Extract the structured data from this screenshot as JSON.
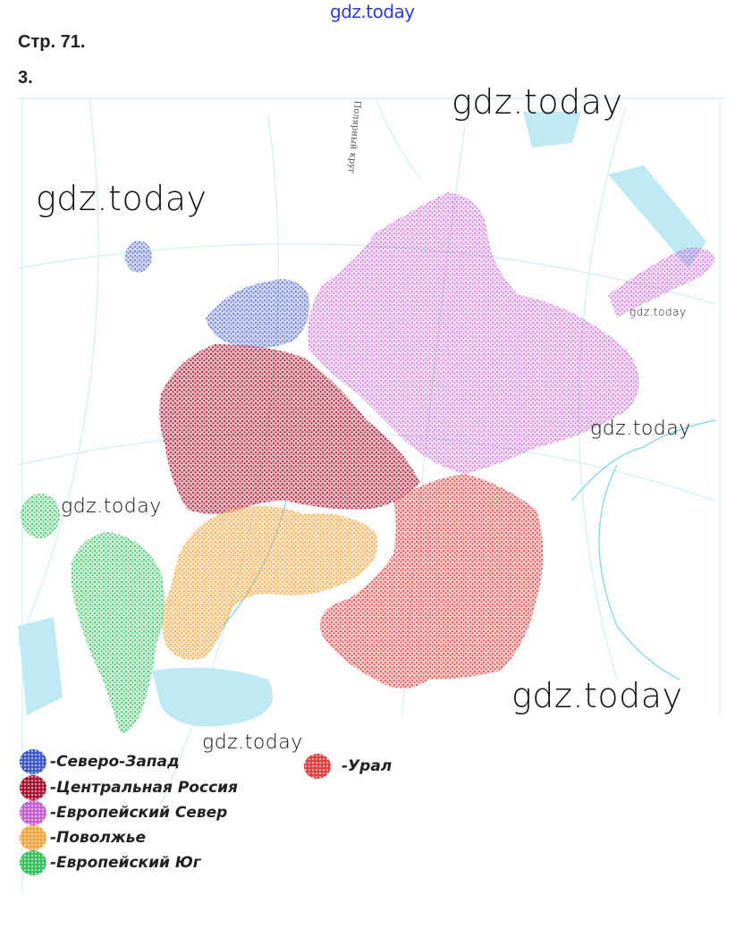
{
  "header": {
    "watermark_top": "gdz.today",
    "page_ref": "Стр. 71.",
    "task_number": "3."
  },
  "map": {
    "circle_label": "Полярный круг",
    "watermarks": [
      "gdz.today",
      "gdz.today",
      "gdz.today",
      "gdz.today",
      "gdz.today",
      "gdz.today",
      "gdz.today"
    ],
    "colors": {
      "north_west": "#3b55c9",
      "central_russia": "#a5122f",
      "european_north": "#c45ad0",
      "volga": "#f2a43a",
      "european_south": "#2fbf5a",
      "ural": "#e33b3b",
      "water": "#bfe9f3"
    }
  },
  "legend": {
    "items": [
      {
        "label": "-Северо-Запад",
        "color": "#3b55c9"
      },
      {
        "label": "-Центральная Россия",
        "color": "#a5122f"
      },
      {
        "label": "-Европейский Север",
        "color": "#c45ad0"
      },
      {
        "label": "-Поволжье",
        "color": "#f2a43a"
      },
      {
        "label": "-Европейский Юг",
        "color": "#2fbf5a"
      },
      {
        "label": "-Урал",
        "color": "#e33b3b"
      }
    ]
  }
}
